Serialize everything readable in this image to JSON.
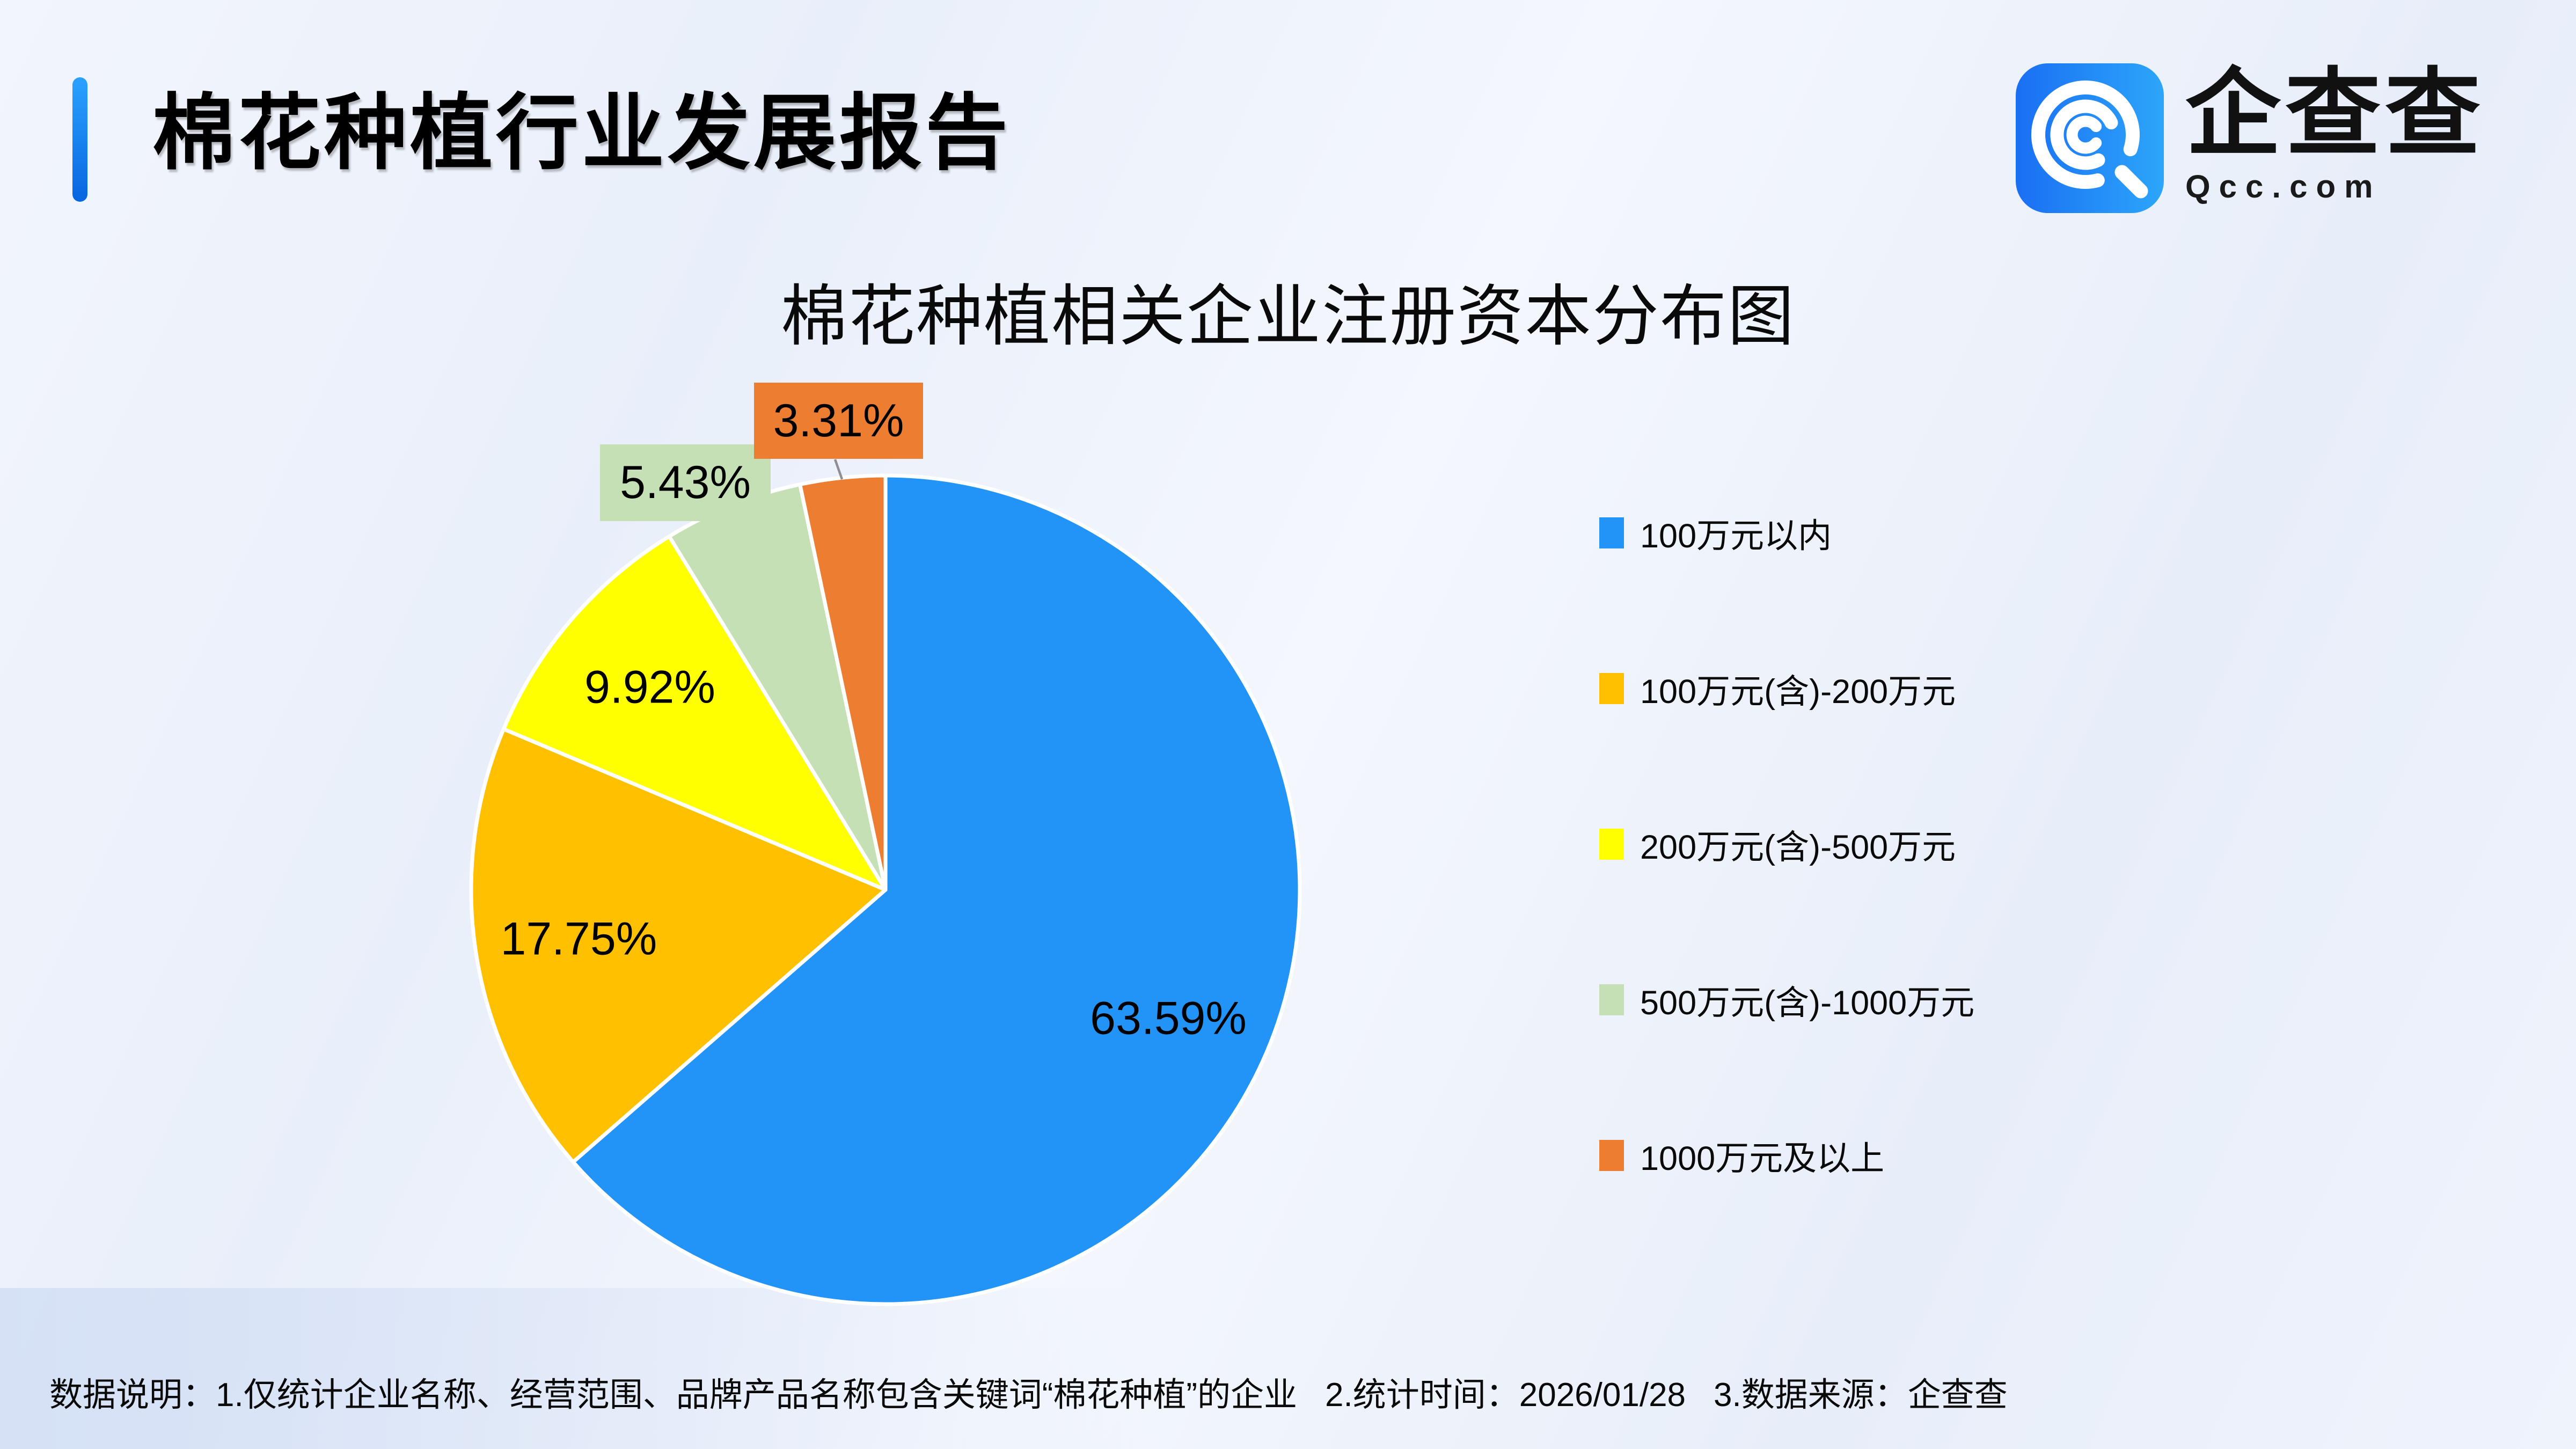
{
  "header": {
    "title": "棉花种植行业发展报告",
    "accent_color": "#0E6FE8"
  },
  "logo": {
    "name": "企查查",
    "domain": "Qcc.com",
    "icon_gradient": [
      "#1A6FF3",
      "#2CA6FA"
    ]
  },
  "chart_data": {
    "type": "pie",
    "title": "棉花种植相关企业注册资本分布图",
    "unit": "percent",
    "start_angle_deg": 0,
    "direction": "clockwise",
    "legend_position": "right",
    "categories": [
      "100万元以内",
      "100万元(含)-200万元",
      "200万元(含)-500万元",
      "500万元(含)-1000万元",
      "1000万元及以上"
    ],
    "values": [
      63.59,
      17.75,
      9.92,
      5.43,
      3.31
    ],
    "slices": [
      {
        "label": "100万元以内",
        "value": 63.59,
        "display": "63.59%",
        "color": "#2394F7",
        "label_placement": "inside"
      },
      {
        "label": "100万元(含)-200万元",
        "value": 17.75,
        "display": "17.75%",
        "color": "#FFC000",
        "label_placement": "inside"
      },
      {
        "label": "200万元(含)-500万元",
        "value": 9.92,
        "display": "9.92%",
        "color": "#FFFF00",
        "label_placement": "inside"
      },
      {
        "label": "500万元(含)-1000万元",
        "value": 5.43,
        "display": "5.43%",
        "color": "#C5E0B4",
        "label_placement": "outside-boxed"
      },
      {
        "label": "1000万元及以上",
        "value": 3.31,
        "display": "3.31%",
        "color": "#ED7D31",
        "label_placement": "outside-boxed"
      }
    ]
  },
  "footer": {
    "label": "数据说明：",
    "notes": [
      "1.仅统计企业名称、经营范围、品牌产品名称包含关键词“棉花种植”的企业",
      "2.统计时间：2026/01/28",
      "3.数据来源：企查查"
    ]
  }
}
